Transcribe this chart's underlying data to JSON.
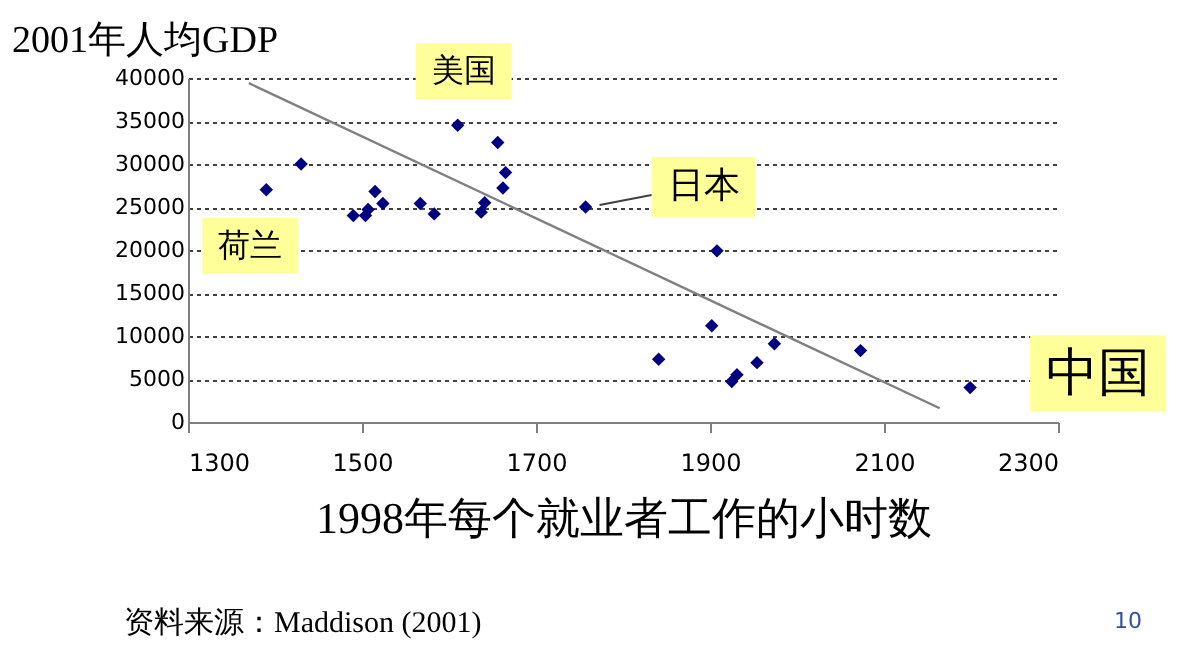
{
  "chart_data": {
    "type": "scatter",
    "title": "2001年人均GDP",
    "xlabel": "1998年每个就业者工作的小时数",
    "xlim": [
      1300,
      2300
    ],
    "xticks": [
      1300,
      1500,
      1700,
      1900,
      2100,
      2300
    ],
    "ylim": [
      0,
      40000
    ],
    "yticks": [
      0,
      5000,
      10000,
      15000,
      20000,
      25000,
      30000,
      35000,
      40000
    ],
    "grid": "y",
    "series": [
      {
        "type": "scatter",
        "marker": "diamond",
        "color": "#000080",
        "x": [
          1390,
          1430,
          1490,
          1504,
          1507,
          1515,
          1524,
          1567,
          1583,
          1610,
          1637,
          1641,
          1656,
          1665,
          1662,
          1757,
          1908,
          1902,
          1841,
          1974,
          1954,
          1931,
          1925,
          2073,
          2199
        ],
        "values": [
          27000,
          30000,
          24000,
          24000,
          24700,
          26800,
          25400,
          25400,
          24200,
          34500,
          24400,
          25500,
          32500,
          29000,
          27200,
          25000,
          19900,
          11200,
          7300,
          9100,
          6900,
          5500,
          4700,
          8300,
          4000
        ]
      },
      {
        "type": "line",
        "color": "#808080",
        "x": [
          1370,
          2164
        ],
        "values": [
          39400,
          1600
        ]
      }
    ],
    "annotations": [
      {
        "text": "美国",
        "x": 1610,
        "y": 34500
      },
      {
        "text": "日本",
        "x": 1757,
        "y": 25000
      },
      {
        "text": "荷兰",
        "x": 1390,
        "y": 27000
      },
      {
        "text": "中国",
        "x": 2199,
        "y": 4000
      },
      "资料来源：Maddison (2001)",
      "10"
    ]
  }
}
